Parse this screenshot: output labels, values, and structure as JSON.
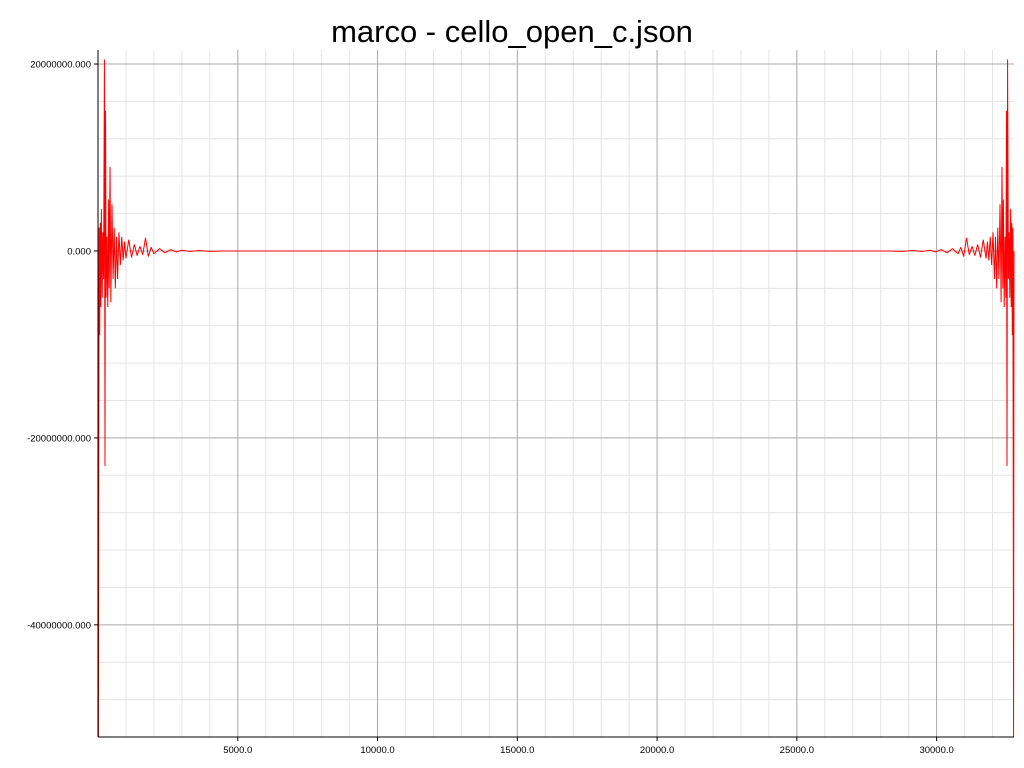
{
  "chart_data": {
    "type": "line",
    "title": "marco - cello_open_c.json",
    "xlabel": "",
    "ylabel": "",
    "xlim": [
      0,
      32768
    ],
    "ylim": [
      -52000000,
      21500000
    ],
    "grid": true,
    "x_ticks": [
      {
        "value": 5000,
        "label": "5000.0"
      },
      {
        "value": 10000,
        "label": "10000.0"
      },
      {
        "value": 15000,
        "label": "15000.0"
      },
      {
        "value": 20000,
        "label": "20000.0"
      },
      {
        "value": 25000,
        "label": "25000.0"
      },
      {
        "value": 30000,
        "label": "30000.0"
      }
    ],
    "y_ticks": [
      {
        "value": 20000000,
        "label": "20000000.000"
      },
      {
        "value": 0,
        "label": "0.000"
      },
      {
        "value": -20000000,
        "label": "-20000000.000"
      },
      {
        "value": -40000000,
        "label": "-40000000.000"
      }
    ],
    "series": [
      {
        "color": "#ff0000",
        "symmetric_about_x": 32768,
        "points": [
          [
            0,
            0
          ],
          [
            15,
            -52000000
          ],
          [
            40,
            2500000
          ],
          [
            60,
            -9000000
          ],
          [
            80,
            3000000
          ],
          [
            100,
            -6000000
          ],
          [
            120,
            4500000
          ],
          [
            150,
            -5000000
          ],
          [
            170,
            2000000
          ],
          [
            200,
            -3000000
          ],
          [
            230,
            20500000
          ],
          [
            250,
            -23000000
          ],
          [
            270,
            15000000
          ],
          [
            290,
            -5000000
          ],
          [
            320,
            1500000
          ],
          [
            350,
            -6000000
          ],
          [
            380,
            5500000
          ],
          [
            400,
            -4000000
          ],
          [
            430,
            9000000
          ],
          [
            460,
            -5500000
          ],
          [
            500,
            5000000
          ],
          [
            540,
            -3000000
          ],
          [
            580,
            2500000
          ],
          [
            620,
            -4000000
          ],
          [
            660,
            1500000
          ],
          [
            700,
            -3000000
          ],
          [
            750,
            2000000
          ],
          [
            800,
            -1500000
          ],
          [
            850,
            1500000
          ],
          [
            900,
            -1000000
          ],
          [
            950,
            1000000
          ],
          [
            1000,
            -800000
          ],
          [
            1100,
            1200000
          ],
          [
            1200,
            -700000
          ],
          [
            1300,
            700000
          ],
          [
            1400,
            -500000
          ],
          [
            1500,
            500000
          ],
          [
            1600,
            -400000
          ],
          [
            1700,
            1400000
          ],
          [
            1800,
            -600000
          ],
          [
            1900,
            400000
          ],
          [
            2000,
            -300000
          ],
          [
            2200,
            250000
          ],
          [
            2400,
            -200000
          ],
          [
            2600,
            150000
          ],
          [
            2800,
            -100000
          ],
          [
            3000,
            80000
          ],
          [
            3300,
            -60000
          ],
          [
            3600,
            50000
          ],
          [
            4000,
            -40000
          ],
          [
            4500,
            0
          ],
          [
            16384,
            0
          ]
        ]
      }
    ]
  }
}
